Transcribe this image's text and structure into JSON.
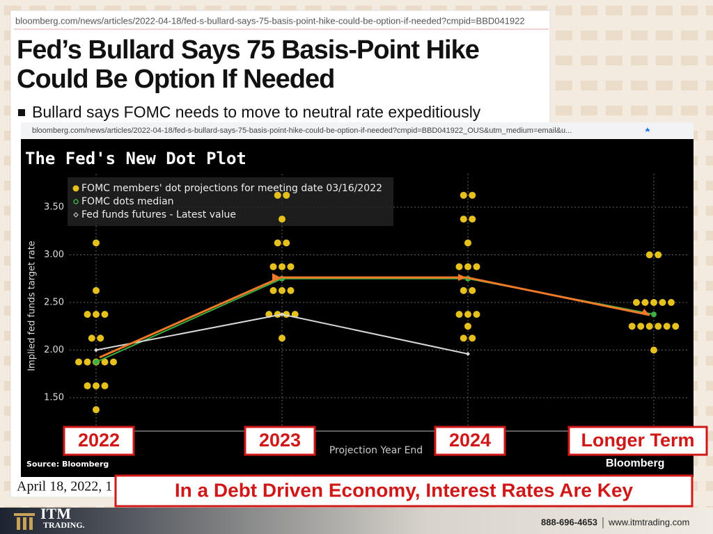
{
  "article": {
    "url": "bloomberg.com/news/articles/2022-04-18/fed-s-bullard-says-75-basis-point-hike-could-be-option-if-needed?cmpid=BBD041922",
    "headline": [
      "Fed’s Bullard Says 75 Basis-Point Hike",
      "Could Be Option If Needed"
    ],
    "bullet": "Bullard says FOMC needs to move to neutral rate expeditiously",
    "date": "April 18, 2022, 1"
  },
  "screenshot": {
    "url": "bloomberg.com/news/articles/2022-04-18/fed-s-bullard-says-75-basis-point-hike-could-be-option-if-needed?cmpid=BBD041922_OUS&utm_medium=email&u..."
  },
  "chart_data": {
    "type": "dotplot",
    "title": "The Fed's New Dot Plot",
    "categories": [
      "2022",
      "2023",
      "2024",
      "Longer Term"
    ],
    "xlabel": "Projection Year End",
    "ylabel": "Implied fed funds target rate",
    "ylim": [
      1.15,
      3.85
    ],
    "yticks": [
      {
        "value": 1.5,
        "label": "1.50"
      },
      {
        "value": 2.0,
        "label": "2.00"
      },
      {
        "value": 2.5,
        "label": "2.50"
      },
      {
        "value": 3.0,
        "label": "3.00"
      },
      {
        "value": 3.5,
        "label": "3.50"
      }
    ],
    "grid": true,
    "series": [
      {
        "name": "FOMC members' dot projections for meeting date 03/16/2022",
        "color": "#e6c01c",
        "values": [
          [
            3.125,
            2.625,
            2.375,
            2.375,
            2.375,
            2.125,
            2.125,
            1.875,
            1.875,
            1.875,
            1.875,
            1.875,
            1.625,
            1.625,
            1.625,
            1.375
          ],
          [
            3.625,
            3.625,
            3.375,
            3.125,
            3.125,
            2.875,
            2.875,
            2.875,
            2.625,
            2.625,
            2.625,
            2.375,
            2.375,
            2.375,
            2.375,
            2.125
          ],
          [
            3.625,
            3.625,
            3.375,
            3.375,
            3.125,
            2.875,
            2.875,
            2.875,
            2.625,
            2.625,
            2.375,
            2.375,
            2.375,
            2.25,
            2.125,
            2.125
          ],
          [
            3.0,
            3.0,
            2.5,
            2.5,
            2.5,
            2.5,
            2.5,
            2.25,
            2.25,
            2.25,
            2.25,
            2.25,
            2.25,
            2.0
          ]
        ]
      },
      {
        "name": "FOMC dots median",
        "color": "#3cb043",
        "values": [
          1.875,
          2.75,
          2.75,
          2.375
        ]
      },
      {
        "name": "Fed funds futures - Latest value",
        "color": "#d8d8d8",
        "values": [
          2.0,
          2.375,
          1.96,
          null
        ]
      }
    ],
    "source": "Source: Bloomberg",
    "brand": "Bloomberg"
  },
  "banner": "In a Debt Driven Economy, Interest Rates Are Key",
  "footer": {
    "logo": "ITM",
    "logo_sub": "TRADING.",
    "phone": "888-696-4653",
    "site": "www.itmtrading.com"
  }
}
